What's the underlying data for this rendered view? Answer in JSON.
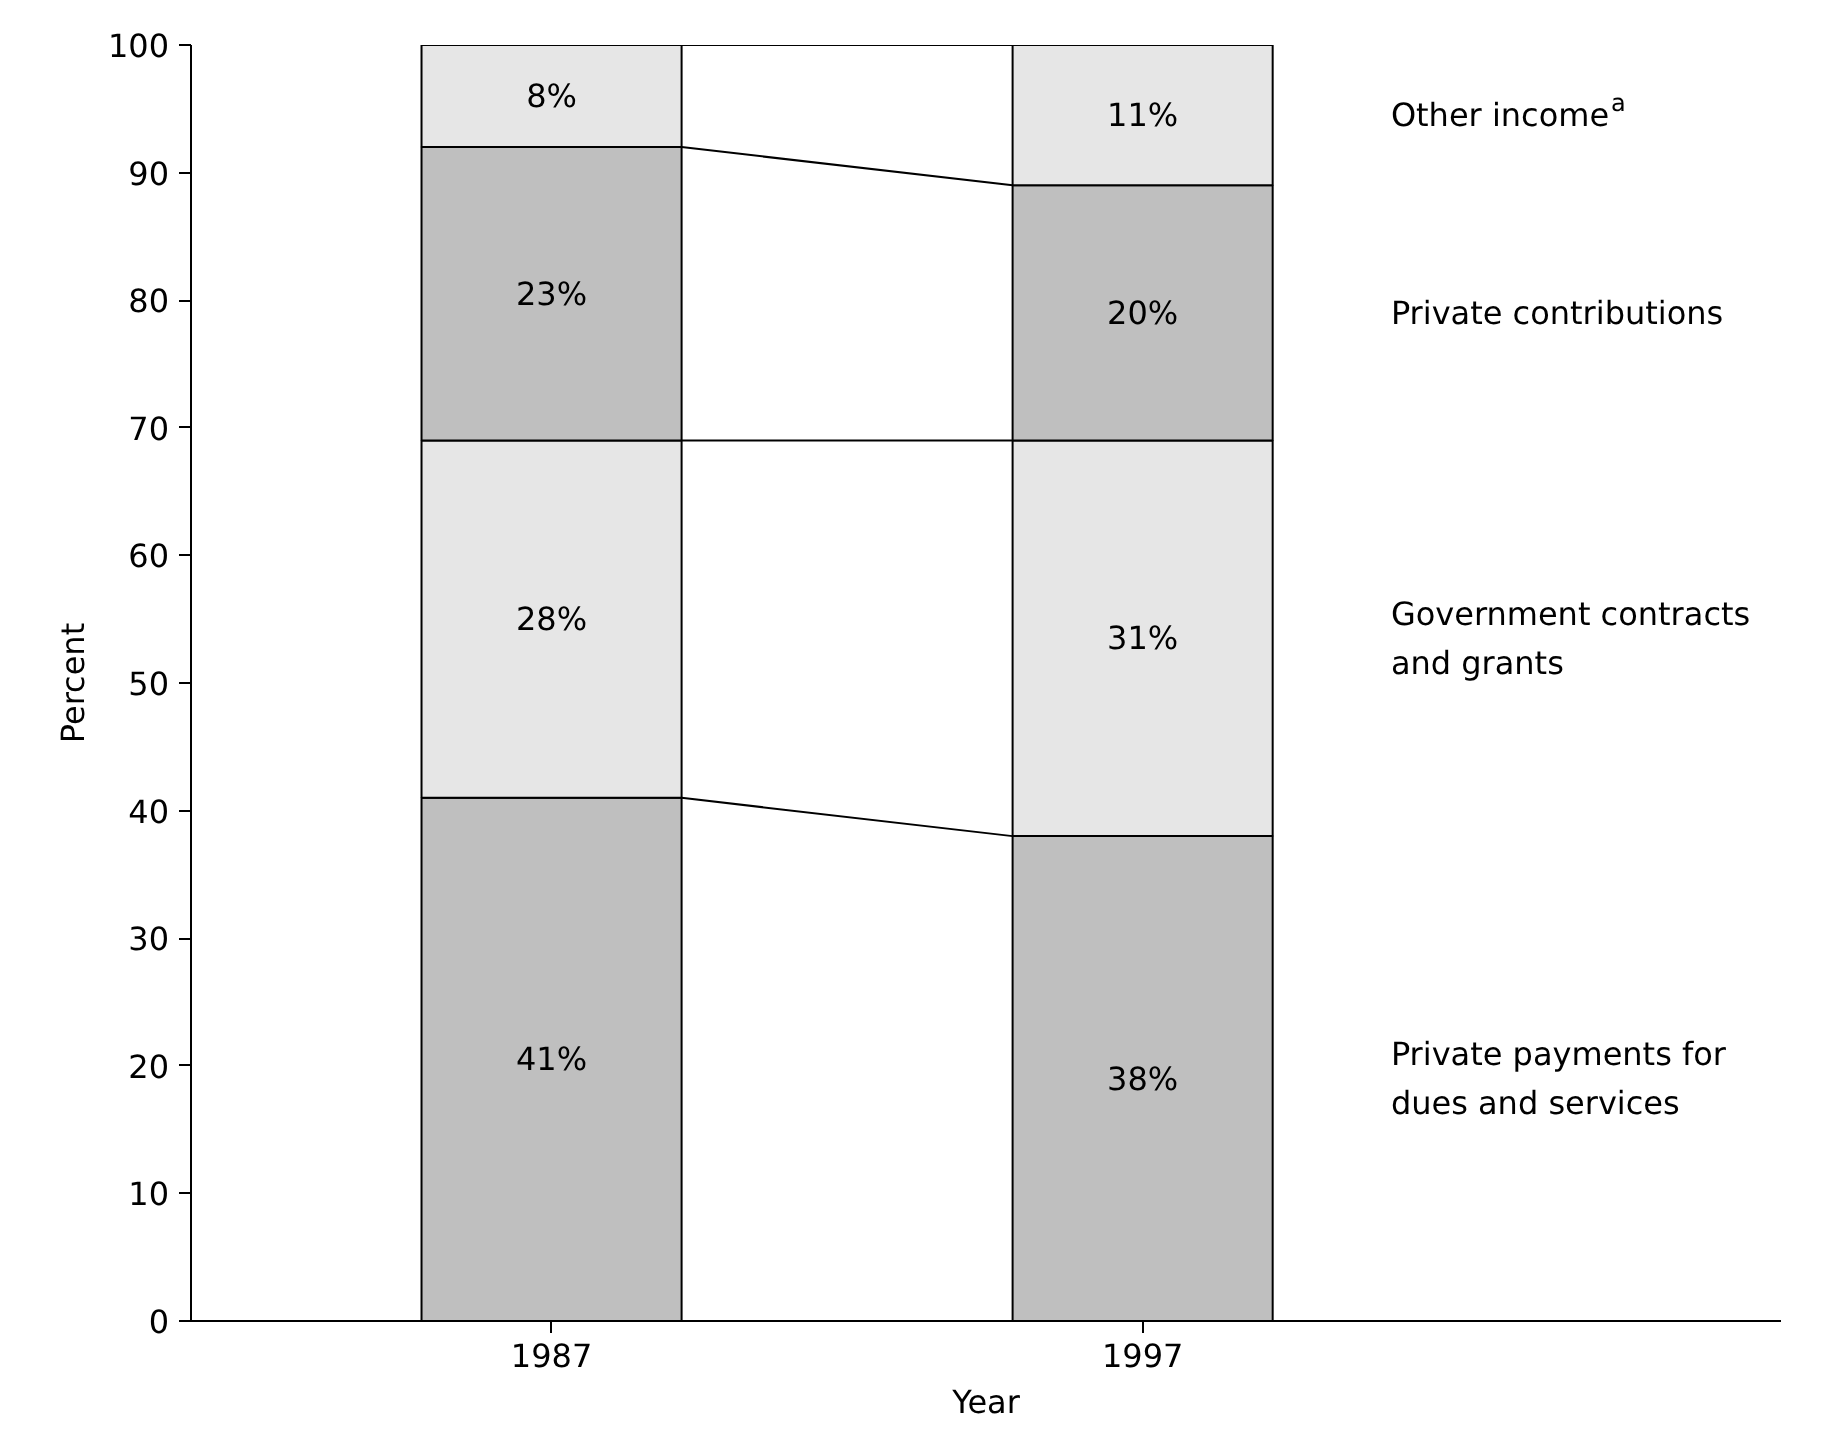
{
  "chart_data": {
    "type": "bar",
    "stacked": true,
    "xlabel": "Year",
    "ylabel": "Percent",
    "categories": [
      "1987",
      "1997"
    ],
    "ylim": [
      0,
      100
    ],
    "yticks": [
      0,
      10,
      20,
      30,
      40,
      50,
      60,
      70,
      80,
      90,
      100
    ],
    "grid": false,
    "series": [
      {
        "name": "Private payments for\ndues and services",
        "color": "#bfbfbf",
        "values": [
          41,
          38
        ],
        "value_labels": [
          "41%",
          "38%"
        ]
      },
      {
        "name": "Government contracts\nand grants",
        "color": "#e6e6e6",
        "values": [
          28,
          31
        ],
        "value_labels": [
          "28%",
          "31%"
        ]
      },
      {
        "name": "Private contributions",
        "color": "#bfbfbf",
        "values": [
          23,
          20
        ],
        "value_labels": [
          "23%",
          "20%"
        ]
      },
      {
        "name": "Other income$^{a}$",
        "color": "#e6e6e6",
        "values": [
          8,
          11
        ],
        "value_labels": [
          "8%",
          "11%"
        ]
      }
    ]
  }
}
